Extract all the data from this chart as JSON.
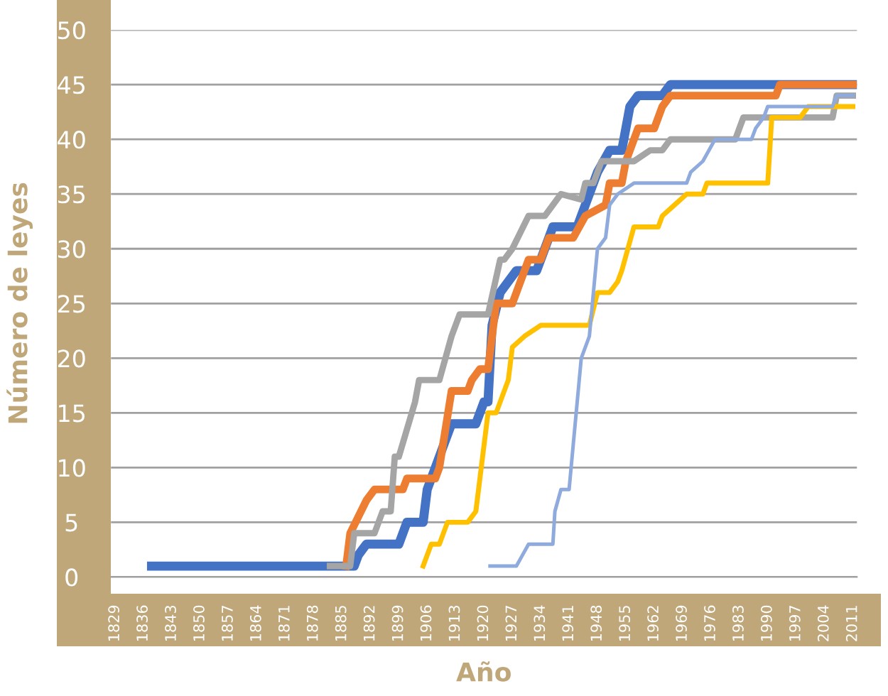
{
  "chart_data": {
    "type": "line",
    "xlabel": "Año",
    "ylabel": "Número de leyes",
    "xlim": [
      1828,
      2012
    ],
    "ylim": [
      0,
      50
    ],
    "xticks": [
      1829,
      1836,
      1843,
      1850,
      1857,
      1864,
      1871,
      1878,
      1885,
      1892,
      1899,
      1906,
      1913,
      1920,
      1927,
      1934,
      1941,
      1948,
      1955,
      1962,
      1969,
      1976,
      1983,
      1990,
      1997,
      2004,
      2011
    ],
    "yticks": [
      0,
      5,
      10,
      15,
      20,
      25,
      30,
      35,
      40,
      45,
      50
    ],
    "grid": "y",
    "marker": "none",
    "line_style": "solid",
    "series": [
      {
        "color": "#4472c4",
        "x": [
          1838,
          1888,
          1889,
          1891,
          1899,
          1901,
          1905,
          1906,
          1908,
          1912,
          1918,
          1920,
          1921,
          1922,
          1924,
          1928,
          1933,
          1937,
          1943,
          1945,
          1948,
          1951,
          1954,
          1956,
          1958,
          1964,
          1966,
          2011
        ],
        "values": [
          1,
          1,
          2,
          3,
          3,
          5,
          5,
          8,
          10,
          14,
          14,
          16,
          16,
          23,
          26,
          28,
          28,
          32,
          32,
          34,
          37,
          39,
          39,
          43,
          44,
          44,
          45,
          45
        ]
      },
      {
        "color": "#ed7d31",
        "x": [
          1886,
          1887,
          1891,
          1893,
          1900,
          1901,
          1908,
          1909,
          1912,
          1916,
          1917,
          1919,
          1921,
          1922,
          1923,
          1927,
          1931,
          1934,
          1936,
          1942,
          1945,
          1950,
          1951,
          1954,
          1955,
          1958,
          1962,
          1964,
          1966,
          1992,
          1993,
          2011
        ],
        "values": [
          1,
          4,
          7,
          8,
          8,
          9,
          9,
          10,
          17,
          17,
          18,
          19,
          19,
          22,
          25,
          25,
          29,
          29,
          31,
          31,
          33,
          34,
          36,
          36,
          38,
          41,
          41,
          43,
          44,
          44,
          45,
          45
        ]
      },
      {
        "color": "#a5a5a5",
        "x": [
          1882,
          1887,
          1888,
          1893,
          1895,
          1897,
          1898,
          1899,
          1903,
          1904,
          1909,
          1912,
          1914,
          1921,
          1924,
          1925,
          1927,
          1931,
          1935,
          1937,
          1939,
          1944,
          1945,
          1947,
          1949,
          1957,
          1961,
          1964,
          1966,
          1982,
          1984,
          1990,
          2006,
          2007,
          2011
        ],
        "values": [
          1,
          1,
          4,
          4,
          6,
          6,
          11,
          11,
          16,
          18,
          18,
          22,
          24,
          24,
          29,
          29,
          30,
          33,
          33,
          34,
          35,
          34.5,
          36,
          36,
          38,
          38,
          39,
          39,
          40,
          40,
          42,
          42,
          42,
          44,
          44
        ]
      },
      {
        "color": "#ffc000",
        "x": [
          1905,
          1907,
          1909,
          1911,
          1916,
          1918,
          1921,
          1923,
          1926,
          1927,
          1930,
          1934,
          1946,
          1948,
          1951,
          1953,
          1954,
          1957,
          1963,
          1964,
          1967,
          1970,
          1974,
          1975,
          1990,
          1991,
          1998,
          2000,
          2011
        ],
        "values": [
          1,
          3,
          3,
          5,
          5,
          6,
          15,
          15,
          18,
          21,
          22,
          23,
          23,
          26,
          26,
          27,
          28,
          32,
          32,
          33,
          34,
          35,
          35,
          36,
          36,
          42,
          42,
          43,
          43
        ]
      },
      {
        "color": "#8faadc",
        "x": [
          1921.5,
          1928,
          1929.5,
          1931,
          1937,
          1937.5,
          1939,
          1941,
          1942,
          1944,
          1946,
          1948,
          1950,
          1951,
          1953,
          1957,
          1958,
          1970,
          1971,
          1974,
          1977,
          1986,
          1987,
          1989,
          1990,
          2006,
          2007,
          2011
        ],
        "values": [
          1,
          1,
          2,
          3,
          3,
          6,
          8,
          8,
          12,
          20,
          22,
          30,
          31,
          34,
          35,
          36,
          36,
          36,
          37,
          38,
          40,
          40,
          41,
          42,
          43,
          43,
          44,
          44
        ]
      }
    ]
  }
}
